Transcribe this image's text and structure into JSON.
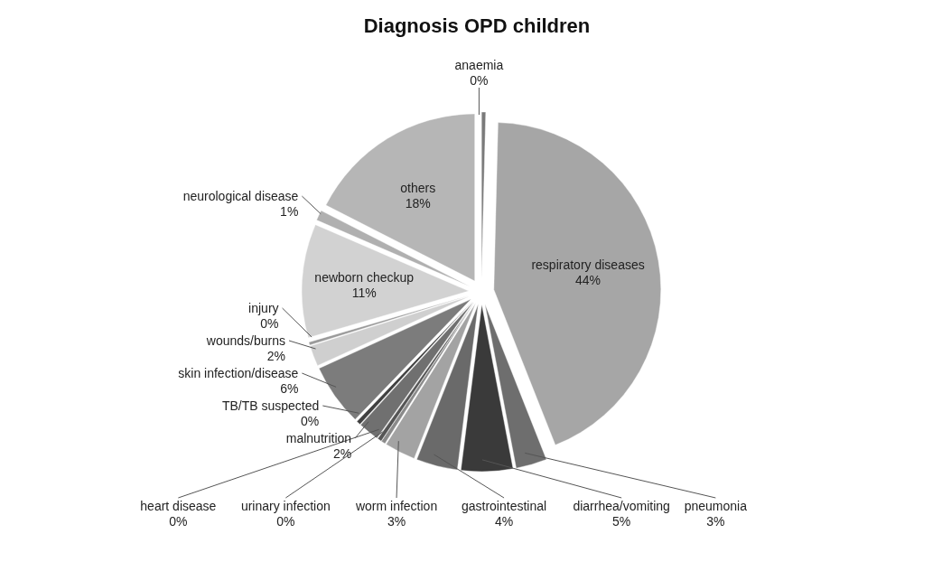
{
  "chart_data": {
    "type": "pie",
    "title": "Diagnosis OPD children",
    "categories": [
      "anaemia",
      "respiratory diseases",
      "pneumonia",
      "diarrhea/vomiting",
      "gastrointestinal",
      "worm infection",
      "urinary infection",
      "heart disease",
      "malnutrition",
      "TB/TB suspected",
      "skin infection/disease",
      "wounds/burns",
      "injury",
      "newborn checkup",
      "neurological disease",
      "others"
    ],
    "values": [
      0.4,
      43.6,
      3,
      5,
      4,
      3,
      0.4,
      0.4,
      2,
      0.4,
      6,
      2,
      0.3,
      11,
      1,
      17.5
    ],
    "value_labels": [
      "0%",
      "44%",
      "3%",
      "5%",
      "4%",
      "3%",
      "0%",
      "0%",
      "2%",
      "0%",
      "6%",
      "2%",
      "0%",
      "11%",
      "1%",
      "18%"
    ],
    "colors": [
      "#7a7a7a",
      "#a6a6a6",
      "#6e6e6e",
      "#3a3a3a",
      "#6a6a6a",
      "#a3a3a3",
      "#8a8a8a",
      "#555555",
      "#707070",
      "#404040",
      "#7c7c7c",
      "#cfcfcf",
      "#9a9a9a",
      "#d2d2d2",
      "#b0b0b0",
      "#b6b6b6"
    ],
    "legend": false
  }
}
